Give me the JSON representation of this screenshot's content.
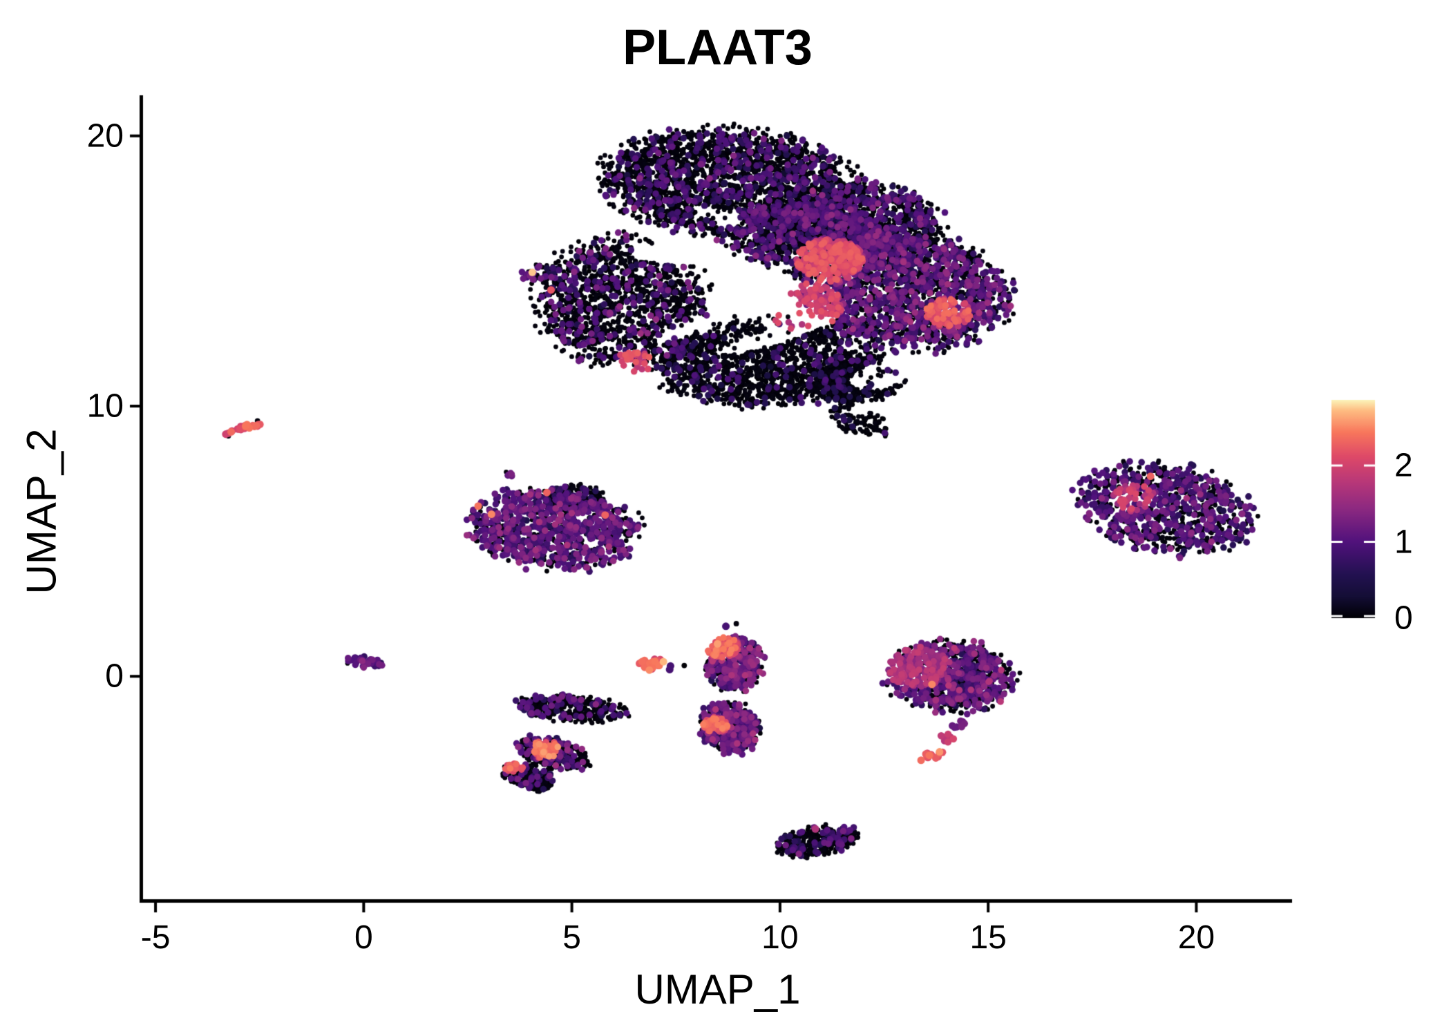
{
  "chart_data": {
    "type": "scatter",
    "title": "PLAAT3",
    "xlabel": "UMAP_1",
    "ylabel": "UMAP_2",
    "x_ticks": [
      -5,
      0,
      5,
      10,
      15,
      20
    ],
    "y_ticks": [
      0,
      10,
      20
    ],
    "x_domain": [
      -5.3,
      22.3
    ],
    "y_domain": [
      -8.25,
      21.45
    ],
    "grid": "off",
    "legend_position": "right",
    "colorbar": {
      "ticks": [
        0,
        1,
        2
      ],
      "domain": [
        0,
        2.86
      ],
      "palette_name": "magma",
      "stops": [
        [
          0.0,
          "#000004"
        ],
        [
          0.1,
          "#140e36"
        ],
        [
          0.2,
          "#231151"
        ],
        [
          0.35,
          "#51127c"
        ],
        [
          0.5,
          "#8c2981"
        ],
        [
          0.62,
          "#b73779"
        ],
        [
          0.74,
          "#de4968"
        ],
        [
          0.85,
          "#f8765c"
        ],
        [
          0.95,
          "#febb81"
        ],
        [
          1.0,
          "#fcf4b9"
        ]
      ]
    },
    "clusters": [
      {
        "id": "main-top-lobe",
        "cx": 8.8,
        "cy": 18.3,
        "rx": 3.05,
        "ry": 1.95,
        "rot": -5,
        "n": 2300,
        "p0": 0.8,
        "mean": 0.85,
        "sd": 0.4
      },
      {
        "id": "main-upper-right",
        "cx": 12.2,
        "cy": 16.8,
        "rx": 1.85,
        "ry": 1.45,
        "rot": -25,
        "n": 950,
        "p0": 0.72,
        "mean": 0.9,
        "sd": 0.4
      },
      {
        "id": "main-right-lobe",
        "cx": 12.9,
        "cy": 14.3,
        "rx": 2.6,
        "ry": 2.1,
        "rot": -20,
        "n": 2000,
        "p0": 0.58,
        "mean": 1.0,
        "sd": 0.45
      },
      {
        "id": "main-left-lobe",
        "cx": 6.2,
        "cy": 13.8,
        "rx": 2.1,
        "ry": 2.4,
        "rot": 10,
        "n": 1500,
        "p0": 0.82,
        "mean": 0.9,
        "sd": 0.45
      },
      {
        "id": "main-left-tip",
        "cx": 4.15,
        "cy": 14.9,
        "rx": 0.4,
        "ry": 0.3,
        "rot": 20,
        "n": 35,
        "p0": 0.55,
        "mean": 1.0,
        "sd": 0.45
      },
      {
        "id": "main-mid-band",
        "cx": 10.8,
        "cy": 16.2,
        "rx": 2.2,
        "ry": 1.25,
        "rot": -10,
        "n": 1150,
        "p0": 0.68,
        "mean": 0.9,
        "sd": 0.45
      },
      {
        "id": "main-bottom-lobe",
        "cx": 9.6,
        "cy": 11.6,
        "rx": 2.7,
        "ry": 1.6,
        "rot": 0,
        "n": 1500,
        "p0": 0.88,
        "mean": 0.7,
        "sd": 0.35
      },
      {
        "id": "main-bottom-right",
        "cx": 11.9,
        "cy": 11.0,
        "rx": 1.15,
        "ry": 0.85,
        "rot": 20,
        "n": 700,
        "p0": 0.93,
        "mean": 0.6,
        "sd": 0.3
      },
      {
        "id": "main-neck",
        "cx": 11.9,
        "cy": 9.45,
        "rx": 0.8,
        "ry": 0.5,
        "rot": -30,
        "n": 90,
        "p0": 0.9,
        "mean": 0.6,
        "sd": 0.3
      },
      {
        "id": "bright-streak-left",
        "cx": -2.9,
        "cy": 9.15,
        "rx": 0.45,
        "ry": 0.11,
        "rot": 28,
        "n": 26,
        "p0": 0.04,
        "mean": 2.2,
        "sd": 0.35,
        "rs": 1.15
      },
      {
        "id": "mid-left-cluster",
        "cx": 4.6,
        "cy": 5.45,
        "rx": 2.0,
        "ry": 1.5,
        "rot": -8,
        "n": 950,
        "p0": 0.36,
        "mean": 1.0,
        "sd": 0.45
      },
      {
        "id": "mid-left-darkpatch",
        "cx": 5.0,
        "cy": 6.6,
        "rx": 0.8,
        "ry": 0.5,
        "rot": 0,
        "n": 170,
        "p0": 0.9,
        "mean": 0.6,
        "sd": 0.3
      },
      {
        "id": "mid-left-satellite",
        "cx": 3.5,
        "cy": 7.45,
        "rx": 0.18,
        "ry": 0.12,
        "rot": 0,
        "n": 7,
        "p0": 0.15,
        "mean": 1.1,
        "sd": 0.25
      },
      {
        "id": "right-oval-cluster",
        "cx": 19.3,
        "cy": 6.2,
        "rx": 2.15,
        "ry": 1.6,
        "rot": -20,
        "n": 900,
        "p0": 0.46,
        "mean": 0.95,
        "sd": 0.45
      },
      {
        "id": "origin-clump",
        "cx": 0.0,
        "cy": 0.52,
        "rx": 0.48,
        "ry": 0.2,
        "rot": -12,
        "n": 42,
        "p0": 0.15,
        "mean": 1.05,
        "sd": 0.3
      },
      {
        "id": "orange-hook",
        "cx": 6.9,
        "cy": 0.5,
        "rx": 0.3,
        "ry": 0.27,
        "rot": -30,
        "n": 22,
        "p0": 0.06,
        "mean": 2.3,
        "sd": 0.3,
        "rs": 1.15
      },
      {
        "id": "column-top",
        "cx": 8.9,
        "cy": 0.45,
        "rx": 0.7,
        "ry": 1.0,
        "rot": 0,
        "n": 430,
        "p0": 0.4,
        "mean": 1.1,
        "sd": 0.5
      },
      {
        "id": "column-bottom",
        "cx": 8.8,
        "cy": -1.9,
        "rx": 0.72,
        "ry": 0.95,
        "rot": 10,
        "n": 450,
        "p0": 0.42,
        "mean": 1.0,
        "sd": 0.5
      },
      {
        "id": "two-shape-top",
        "cx": 5.0,
        "cy": -1.2,
        "rx": 1.3,
        "ry": 0.5,
        "rot": -8,
        "n": 330,
        "p0": 0.8,
        "mean": 0.9,
        "sd": 0.45
      },
      {
        "id": "two-shape-mid",
        "cx": 4.55,
        "cy": -2.85,
        "rx": 0.95,
        "ry": 0.52,
        "rot": -25,
        "n": 280,
        "p0": 0.72,
        "mean": 1.0,
        "sd": 0.5
      },
      {
        "id": "two-shape-low",
        "cx": 3.95,
        "cy": -3.7,
        "rx": 0.7,
        "ry": 0.45,
        "rot": -30,
        "n": 200,
        "p0": 0.8,
        "mean": 0.95,
        "sd": 0.45
      },
      {
        "id": "right-mid-body",
        "cx": 14.1,
        "cy": 0.0,
        "rx": 1.55,
        "ry": 1.3,
        "rot": -8,
        "n": 850,
        "p0": 0.46,
        "mean": 1.05,
        "sd": 0.5
      },
      {
        "id": "tail-top",
        "cx": 14.25,
        "cy": -1.75,
        "rx": 0.18,
        "ry": 0.16,
        "rot": 0,
        "n": 8,
        "p0": 0.1,
        "mean": 1.2,
        "sd": 0.25,
        "rs": 1.1
      },
      {
        "id": "tail-mid",
        "cx": 14.0,
        "cy": -2.3,
        "rx": 0.18,
        "ry": 0.16,
        "rot": 0,
        "n": 8,
        "p0": 0.08,
        "mean": 1.8,
        "sd": 0.3,
        "rs": 1.1
      },
      {
        "id": "tail-end",
        "cx": 13.65,
        "cy": -2.9,
        "rx": 0.32,
        "ry": 0.15,
        "rot": 30,
        "n": 13,
        "p0": 0.05,
        "mean": 2.3,
        "sd": 0.3,
        "rs": 1.15
      },
      {
        "id": "bottom-crescent",
        "cx": 10.9,
        "cy": -6.1,
        "rx": 0.98,
        "ry": 0.55,
        "rot": 15,
        "n": 300,
        "p0": 0.86,
        "mean": 0.85,
        "sd": 0.35
      },
      {
        "id": "bottom-crescent-e",
        "cx": 11.45,
        "cy": -5.95,
        "rx": 0.38,
        "ry": 0.3,
        "rot": 0,
        "n": 80,
        "p0": 0.84,
        "mean": 0.85,
        "sd": 0.35
      }
    ],
    "hotspots": [
      {
        "x": 10.6,
        "y": 13.7,
        "r": 0.9,
        "v": 1.9
      },
      {
        "x": 14.05,
        "y": 13.45,
        "r": 0.55,
        "v": 2.1
      },
      {
        "x": 11.2,
        "y": 15.4,
        "r": 0.8,
        "v": 2.0
      },
      {
        "x": 6.5,
        "y": 11.6,
        "r": 0.45,
        "v": 2.0
      },
      {
        "x": 13.2,
        "y": 0.4,
        "r": 0.8,
        "v": 1.6
      },
      {
        "x": 8.6,
        "y": 1.1,
        "r": 0.4,
        "v": 2.2
      },
      {
        "x": 8.45,
        "y": -1.8,
        "r": 0.3,
        "v": 2.2
      },
      {
        "x": 4.35,
        "y": -2.7,
        "r": 0.35,
        "v": 2.3
      },
      {
        "x": 3.6,
        "y": -3.3,
        "r": 0.25,
        "v": 2.2
      },
      {
        "x": 18.5,
        "y": 6.6,
        "r": 0.5,
        "v": 1.8
      }
    ],
    "voids": [
      {
        "cx": 8.1,
        "cy": 13.1,
        "rx": 1.3,
        "ry": 0.28,
        "rot": 35
      },
      {
        "cx": 9.9,
        "cy": 12.6,
        "rx": 1.5,
        "ry": 0.3,
        "rot": 25
      },
      {
        "cx": 7.3,
        "cy": 15.6,
        "rx": 0.9,
        "ry": 0.35,
        "rot": -15
      },
      {
        "cx": 9.1,
        "cy": 14.6,
        "rx": 0.8,
        "ry": 0.3,
        "rot": 20
      },
      {
        "cx": 12.5,
        "cy": 11.2,
        "rx": 0.9,
        "ry": 0.5,
        "rot": 30
      },
      {
        "cx": 8.6,
        "cy": 17.0,
        "rx": 0.7,
        "ry": 0.25,
        "rot": -30
      }
    ],
    "extra_points": [
      {
        "x": 4.05,
        "y": 14.95,
        "v": 2.75
      },
      {
        "x": 4.5,
        "y": 14.3,
        "v": 2.2
      },
      {
        "x": 7.2,
        "y": 0.54,
        "v": 2.7
      },
      {
        "x": 7.35,
        "y": 0.25,
        "v": 0.9
      },
      {
        "x": 7.37,
        "y": 0.38,
        "v": 0.9
      },
      {
        "x": 7.7,
        "y": 0.4,
        "v": 0.02
      },
      {
        "x": 8.5,
        "y": 1.2,
        "v": 2.6
      },
      {
        "x": 8.7,
        "y": 1.85,
        "v": 0.9
      },
      {
        "x": 8.95,
        "y": 1.95,
        "v": 0.05
      },
      {
        "x": 2.75,
        "y": 6.3,
        "v": 2.4
      },
      {
        "x": 3.07,
        "y": 6.0,
        "v": 2.5
      },
      {
        "x": 4.4,
        "y": 6.8,
        "v": 2.3
      },
      {
        "x": 5.8,
        "y": 5.97,
        "v": 2.3
      },
      {
        "x": 13.65,
        "y": -0.3,
        "v": 2.5
      },
      {
        "x": 18.9,
        "y": 7.4,
        "v": 2.3
      },
      {
        "x": 10.85,
        "y": -5.65,
        "v": 1.7
      },
      {
        "x": 13.9,
        "y": -1.3,
        "v": 0.05
      },
      {
        "x": 14.35,
        "y": -1.35,
        "v": 0.05
      },
      {
        "x": -2.55,
        "y": 9.45,
        "v": 0.05
      },
      {
        "x": -3.25,
        "y": 8.9,
        "v": 0.05
      }
    ]
  }
}
